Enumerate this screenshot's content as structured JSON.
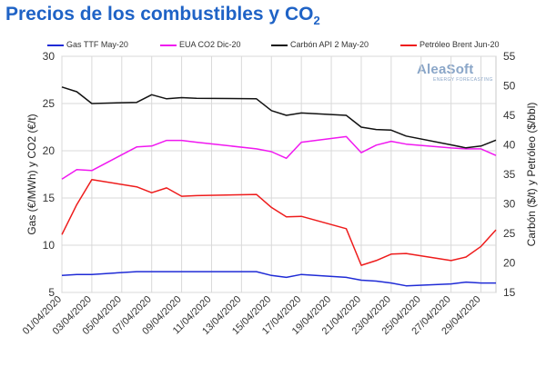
{
  "title": {
    "main": "Precios de los combustibles y CO",
    "sub": "2"
  },
  "logo": {
    "name": "AleaSoft",
    "tagline": "ENERGY FORECASTING"
  },
  "colors": {
    "gas": "#1f2bd6",
    "eua": "#f018f0",
    "carbon": "#111111",
    "brent": "#ee1c1c"
  },
  "chart_data": {
    "type": "line",
    "x": [
      "01/04/2020",
      "02/04/2020",
      "03/04/2020",
      "06/04/2020",
      "07/04/2020",
      "08/04/2020",
      "09/04/2020",
      "10/04/2020",
      "14/04/2020",
      "15/04/2020",
      "16/04/2020",
      "17/04/2020",
      "20/04/2020",
      "21/04/2020",
      "22/04/2020",
      "23/04/2020",
      "24/04/2020",
      "27/04/2020",
      "28/04/2020",
      "29/04/2020",
      "30/04/2020"
    ],
    "x_tick_labels": [
      "01/04/2020",
      "03/04/2020",
      "05/04/2020",
      "07/04/2020",
      "09/04/2020",
      "11/04/2020",
      "13/04/2020",
      "15/04/2020",
      "17/04/2020",
      "19/04/2020",
      "21/04/2020",
      "23/04/2020",
      "25/04/2020",
      "27/04/2020",
      "29/04/2020"
    ],
    "ylabel_left": "Gas (€/MWh) y CO2 (€/t)",
    "ylabel_right": "Carbón ($/t) y Petróleo ($/bbl)",
    "ylim_left": [
      5,
      30
    ],
    "yticks_left": [
      "5",
      "10",
      "15",
      "20",
      "25",
      "30"
    ],
    "ylim_right": [
      15,
      55
    ],
    "yticks_right": [
      "15",
      "20",
      "25",
      "30",
      "35",
      "40",
      "45",
      "50",
      "55"
    ],
    "grid": true,
    "legend_position": "top",
    "series": [
      {
        "name": "Gas TTF May-20",
        "axis": "left",
        "color": "#1f2bd6",
        "values": [
          6.8,
          6.9,
          6.9,
          7.2,
          7.2,
          7.2,
          7.2,
          7.2,
          7.2,
          6.8,
          6.6,
          6.9,
          6.6,
          6.3,
          6.2,
          6.0,
          5.7,
          5.9,
          6.1,
          6.0,
          6.0
        ]
      },
      {
        "name": "EUA CO2 Dic-20",
        "axis": "left",
        "color": "#f018f0",
        "values": [
          17.0,
          18.0,
          17.9,
          20.4,
          20.5,
          21.1,
          21.1,
          20.9,
          20.2,
          19.9,
          19.2,
          20.9,
          21.5,
          19.8,
          20.6,
          21.0,
          20.7,
          20.3,
          20.2,
          20.2,
          19.5
        ]
      },
      {
        "name": "Carbón API 2 May-20",
        "axis": "right",
        "color": "#111111",
        "values": [
          49.8,
          49.0,
          47.0,
          47.2,
          48.5,
          47.8,
          48.0,
          47.9,
          47.8,
          45.8,
          45.0,
          45.4,
          45.0,
          43.0,
          42.6,
          42.5,
          41.5,
          40.0,
          39.5,
          39.8,
          40.8
        ]
      },
      {
        "name": "Petróleo Brent Jun-20",
        "axis": "right",
        "color": "#ee1c1c",
        "values": [
          24.8,
          29.9,
          34.1,
          32.9,
          31.9,
          32.7,
          31.3,
          31.4,
          31.6,
          29.4,
          27.8,
          27.9,
          25.8,
          19.6,
          20.4,
          21.5,
          21.6,
          20.4,
          21.0,
          22.8,
          25.6
        ]
      }
    ]
  }
}
